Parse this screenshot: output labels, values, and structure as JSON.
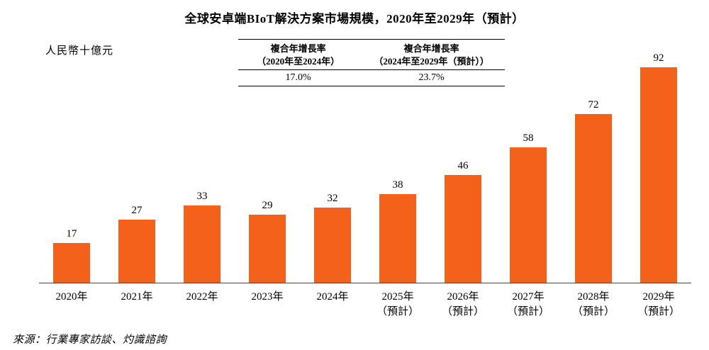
{
  "title": "全球安卓端BIoT解決方案市場規模，2020年至2029年（預計）",
  "unit_label": "人民幣十億元",
  "source": "來源：行業專家訪談、灼識諮詢",
  "chart_data": {
    "type": "bar",
    "title": "全球安卓端BIoT解決方案市場規模，2020年至2029年（預計）",
    "ylabel": "人民幣十億元",
    "ylim": [
      0,
      100
    ],
    "grid": false,
    "legend": "none",
    "bar_color": "#F4611A",
    "categories": [
      {
        "line1": "2020年",
        "line2": ""
      },
      {
        "line1": "2021年",
        "line2": ""
      },
      {
        "line1": "2022年",
        "line2": ""
      },
      {
        "line1": "2023年",
        "line2": ""
      },
      {
        "line1": "2024年",
        "line2": ""
      },
      {
        "line1": "2025年",
        "line2": "（預計）"
      },
      {
        "line1": "2026年",
        "line2": "（預計）"
      },
      {
        "line1": "2027年",
        "line2": "（預計）"
      },
      {
        "line1": "2028年",
        "line2": "（預計）"
      },
      {
        "line1": "2029年",
        "line2": "（預計）"
      }
    ],
    "values": [
      17,
      27,
      33,
      29,
      32,
      38,
      46,
      58,
      72,
      92
    ],
    "cagr_table": {
      "columns": [
        {
          "header_line1": "複合年增長率",
          "header_line2": "（2020年至2024年）",
          "value": "17.0%"
        },
        {
          "header_line1": "複合年增長率",
          "header_line2": "（2024年至2029年（預計））",
          "value": "23.7%"
        }
      ]
    }
  }
}
